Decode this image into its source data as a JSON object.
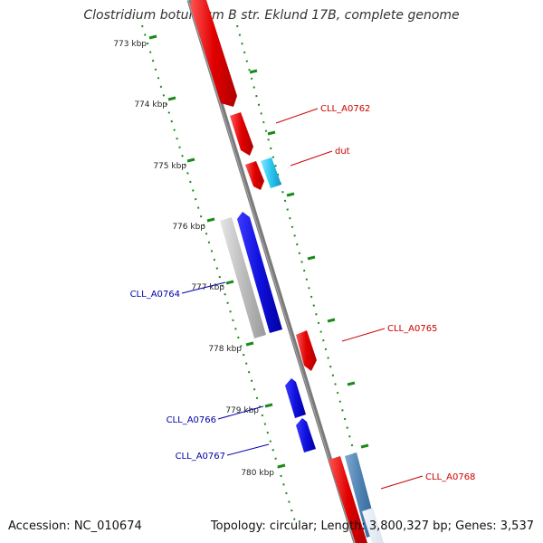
{
  "title": "Clostridium botulinum B str. Eklund 17B, complete genome",
  "footer": {
    "accession": "Accession: NC_010674",
    "stats": "Topology: circular; Length: 3,800,327 bp; Genes: 3,537"
  },
  "ticks": [
    "773 kbp",
    "774 kbp",
    "775 kbp",
    "776 kbp",
    "777 kbp",
    "778 kbp",
    "779 kbp",
    "780 kbp"
  ],
  "labels": [
    {
      "text": "CLL_A0762",
      "color": "#cc0000"
    },
    {
      "text": "dut",
      "color": "#cc0000"
    },
    {
      "text": "CLL_A0764",
      "color": "#0000aa"
    },
    {
      "text": "CLL_A0765",
      "color": "#cc0000"
    },
    {
      "text": "CLL_A0766",
      "color": "#0000aa"
    },
    {
      "text": "CLL_A0767",
      "color": "#0000aa"
    },
    {
      "text": "CLL_A0768",
      "color": "#cc0000"
    }
  ],
  "colors": {
    "backbone": "#7a7a7a",
    "dots": "#1a8a1a",
    "forward_gene": "#e00000",
    "reverse_gene": "#1010dd",
    "rna_gene": "#29c6ef",
    "pseudo_gene": "#bdbdbd",
    "steel_gene": "#4a7fb0"
  }
}
